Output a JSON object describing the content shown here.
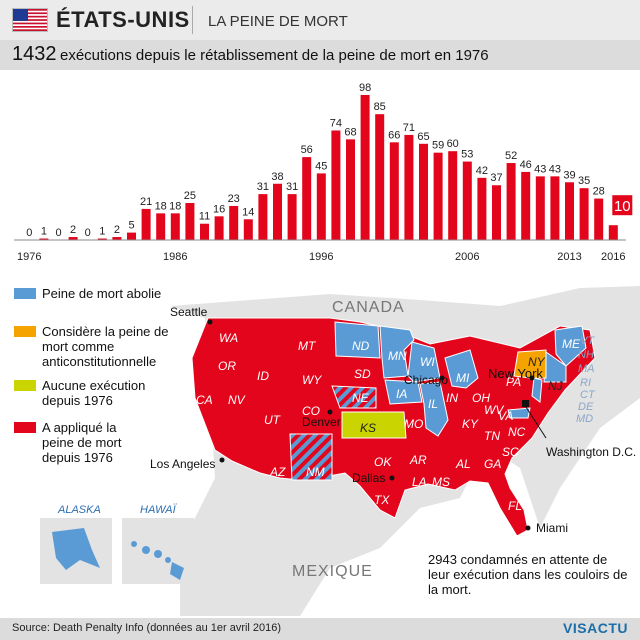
{
  "header": {
    "country": "ÉTATS-UNIS",
    "topic": "LA PEINE DE MORT",
    "headline_number": "1432",
    "headline_text": "exécutions depuis le rétablissement de la peine de mort en 1976"
  },
  "colors": {
    "bar": "#e3051b",
    "last_bar": "#e3051b",
    "abolished": "#5b9bd5",
    "unconstitutional": "#f5a300",
    "no_execution": "#c9d400",
    "applied": "#e3051b",
    "land": "#e3e3e3"
  },
  "chart_data": {
    "type": "bar",
    "title": "1432 exécutions depuis le rétablissement de la peine de mort en 1976",
    "x": [
      1976,
      1977,
      1978,
      1979,
      1980,
      1981,
      1982,
      1983,
      1984,
      1985,
      1986,
      1987,
      1988,
      1989,
      1990,
      1991,
      1992,
      1993,
      1994,
      1995,
      1996,
      1997,
      1998,
      1999,
      2000,
      2001,
      2002,
      2003,
      2004,
      2005,
      2006,
      2007,
      2008,
      2009,
      2010,
      2011,
      2012,
      2013,
      2014,
      2015,
      2016
    ],
    "values": [
      0,
      1,
      0,
      2,
      0,
      1,
      2,
      5,
      21,
      18,
      18,
      25,
      11,
      16,
      23,
      14,
      31,
      38,
      31,
      56,
      45,
      74,
      68,
      98,
      85,
      66,
      71,
      65,
      59,
      60,
      53,
      42,
      37,
      52,
      46,
      43,
      43,
      39,
      35,
      28,
      10
    ],
    "x_tick_labels": [
      "1976",
      "1986",
      "1996",
      "2006",
      "2013",
      "2016"
    ],
    "xlabel": "",
    "ylabel": "",
    "ylim": [
      0,
      100
    ],
    "grid": false,
    "highlight_last": true
  },
  "map": {
    "neighbors": {
      "north": "CANADA",
      "south": "MEXIQUE"
    },
    "insets": {
      "alaska": "ALASKA",
      "hawaii": "HAWAÏ"
    },
    "cities": [
      {
        "name": "Seattle"
      },
      {
        "name": "Chicago"
      },
      {
        "name": "New York"
      },
      {
        "name": "Denver"
      },
      {
        "name": "Los Angeles"
      },
      {
        "name": "Dallas"
      },
      {
        "name": "Washington D.C."
      },
      {
        "name": "Miami"
      }
    ],
    "legend": [
      {
        "key": "abolished",
        "label": "Peine de mort abolie"
      },
      {
        "key": "unconstitutional",
        "label": "Considère la peine de mort comme anticonstitutionnelle"
      },
      {
        "key": "no_execution",
        "label": "Aucune exécution depuis 1976"
      },
      {
        "key": "applied",
        "label": "A appliqué la peine de mort depuis 1976"
      }
    ],
    "states": {
      "applied": [
        "WA",
        "OR",
        "CA",
        "NV",
        "ID",
        "MT",
        "WY",
        "UT",
        "AZ",
        "CO",
        "SD",
        "NE",
        "NM",
        "TX",
        "OK",
        "MO",
        "AR",
        "LA",
        "MS",
        "AL",
        "GA",
        "FL",
        "SC",
        "NC",
        "TN",
        "KY",
        "IN",
        "OH",
        "PA",
        "VA",
        "DE"
      ],
      "abolished": [
        "ND",
        "MN",
        "WI",
        "IA",
        "IL",
        "MI",
        "ME",
        "VT",
        "NH",
        "MA",
        "RI",
        "CT",
        "NJ",
        "MD"
      ],
      "no_execution": [
        "KS"
      ],
      "unconstitutional": [
        "NY"
      ]
    }
  },
  "note": "2943 condamnés en attente de leur exécution dans les couloirs de la mort.",
  "footer": {
    "source": "Source: Death Penalty Info (données au 1er avril 2016)",
    "logo": "VISACTU"
  }
}
